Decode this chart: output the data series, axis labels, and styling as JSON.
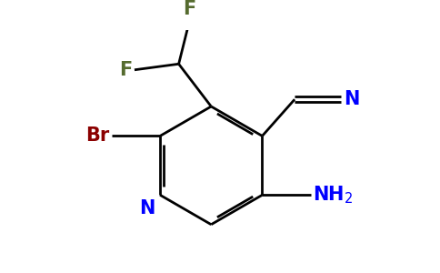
{
  "background_color": "#ffffff",
  "atom_colors": {
    "C": "#000000",
    "N_ring": "#0000ff",
    "N_amino": "#0000ff",
    "N_nitrile": "#0000ff",
    "Br": "#8b0000",
    "F": "#556b2f"
  },
  "figure_width": 4.84,
  "figure_height": 3.0,
  "dpi": 100
}
